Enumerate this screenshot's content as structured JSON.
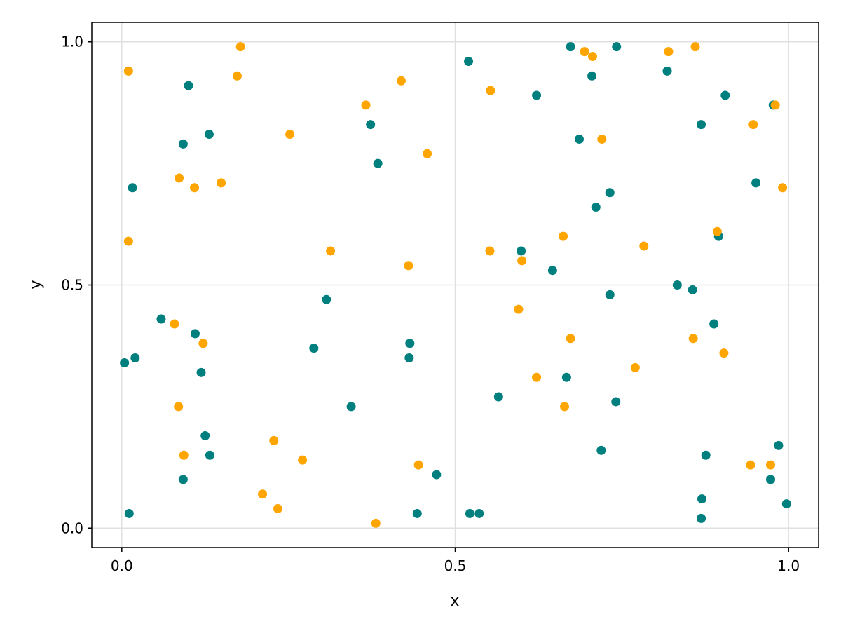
{
  "chart_data": {
    "type": "scatter",
    "title": "",
    "xlabel": "x",
    "ylabel": "y",
    "xlim": [
      -0.045,
      1.045
    ],
    "ylim": [
      -0.04,
      1.04
    ],
    "xticks": [
      0.0,
      0.5,
      1.0
    ],
    "yticks": [
      0.0,
      0.5,
      1.0
    ],
    "xtick_labels": [
      "0.0",
      "0.5",
      "1.0"
    ],
    "ytick_labels": [
      "0.0",
      "0.5",
      "1.0"
    ],
    "grid": true,
    "series": [
      {
        "color": "#007f7f",
        "points": [
          [
            0.1,
            0.91
          ],
          [
            0.092,
            0.79
          ],
          [
            0.131,
            0.81
          ],
          [
            0.016,
            0.7
          ],
          [
            0.059,
            0.43
          ],
          [
            0.11,
            0.4
          ],
          [
            0.119,
            0.32
          ],
          [
            0.02,
            0.35
          ],
          [
            0.004,
            0.34
          ],
          [
            0.125,
            0.19
          ],
          [
            0.132,
            0.15
          ],
          [
            0.092,
            0.1
          ],
          [
            0.011,
            0.03
          ],
          [
            0.373,
            0.83
          ],
          [
            0.384,
            0.75
          ],
          [
            0.307,
            0.47
          ],
          [
            0.288,
            0.37
          ],
          [
            0.344,
            0.25
          ],
          [
            0.432,
            0.38
          ],
          [
            0.431,
            0.35
          ],
          [
            0.472,
            0.11
          ],
          [
            0.443,
            0.03
          ],
          [
            0.52,
            0.96
          ],
          [
            0.522,
            0.03
          ],
          [
            0.536,
            0.03
          ],
          [
            0.565,
            0.27
          ],
          [
            0.599,
            0.57
          ],
          [
            0.622,
            0.89
          ],
          [
            0.646,
            0.53
          ],
          [
            0.673,
            0.99
          ],
          [
            0.686,
            0.8
          ],
          [
            0.705,
            0.93
          ],
          [
            0.711,
            0.66
          ],
          [
            0.667,
            0.31
          ],
          [
            0.719,
            0.16
          ],
          [
            0.732,
            0.69
          ],
          [
            0.732,
            0.48
          ],
          [
            0.741,
            0.26
          ],
          [
            0.742,
            0.99
          ],
          [
            0.818,
            0.94
          ],
          [
            0.833,
            0.5
          ],
          [
            0.856,
            0.49
          ],
          [
            0.869,
            0.83
          ],
          [
            0.905,
            0.89
          ],
          [
            0.895,
            0.6
          ],
          [
            0.888,
            0.42
          ],
          [
            0.876,
            0.15
          ],
          [
            0.87,
            0.06
          ],
          [
            0.869,
            0.02
          ],
          [
            0.951,
            0.71
          ],
          [
            0.977,
            0.87
          ],
          [
            0.985,
            0.17
          ],
          [
            0.973,
            0.1
          ],
          [
            0.997,
            0.05
          ]
        ]
      },
      {
        "color": "#ffa500",
        "points": [
          [
            0.01,
            0.94
          ],
          [
            0.178,
            0.99
          ],
          [
            0.173,
            0.93
          ],
          [
            0.01,
            0.59
          ],
          [
            0.086,
            0.72
          ],
          [
            0.109,
            0.7
          ],
          [
            0.149,
            0.71
          ],
          [
            0.079,
            0.42
          ],
          [
            0.122,
            0.38
          ],
          [
            0.085,
            0.25
          ],
          [
            0.093,
            0.15
          ],
          [
            0.252,
            0.81
          ],
          [
            0.313,
            0.57
          ],
          [
            0.228,
            0.18
          ],
          [
            0.271,
            0.14
          ],
          [
            0.211,
            0.07
          ],
          [
            0.234,
            0.04
          ],
          [
            0.366,
            0.87
          ],
          [
            0.419,
            0.92
          ],
          [
            0.458,
            0.77
          ],
          [
            0.43,
            0.54
          ],
          [
            0.445,
            0.13
          ],
          [
            0.381,
            0.01
          ],
          [
            0.553,
            0.9
          ],
          [
            0.552,
            0.57
          ],
          [
            0.6,
            0.55
          ],
          [
            0.595,
            0.45
          ],
          [
            0.622,
            0.31
          ],
          [
            0.662,
            0.6
          ],
          [
            0.673,
            0.39
          ],
          [
            0.664,
            0.25
          ],
          [
            0.694,
            0.98
          ],
          [
            0.706,
            0.97
          ],
          [
            0.72,
            0.8
          ],
          [
            0.783,
            0.58
          ],
          [
            0.77,
            0.33
          ],
          [
            0.82,
            0.98
          ],
          [
            0.86,
            0.99
          ],
          [
            0.857,
            0.39
          ],
          [
            0.893,
            0.61
          ],
          [
            0.903,
            0.36
          ],
          [
            0.947,
            0.83
          ],
          [
            0.98,
            0.87
          ],
          [
            0.991,
            0.7
          ],
          [
            0.943,
            0.13
          ],
          [
            0.973,
            0.13
          ]
        ]
      }
    ]
  }
}
